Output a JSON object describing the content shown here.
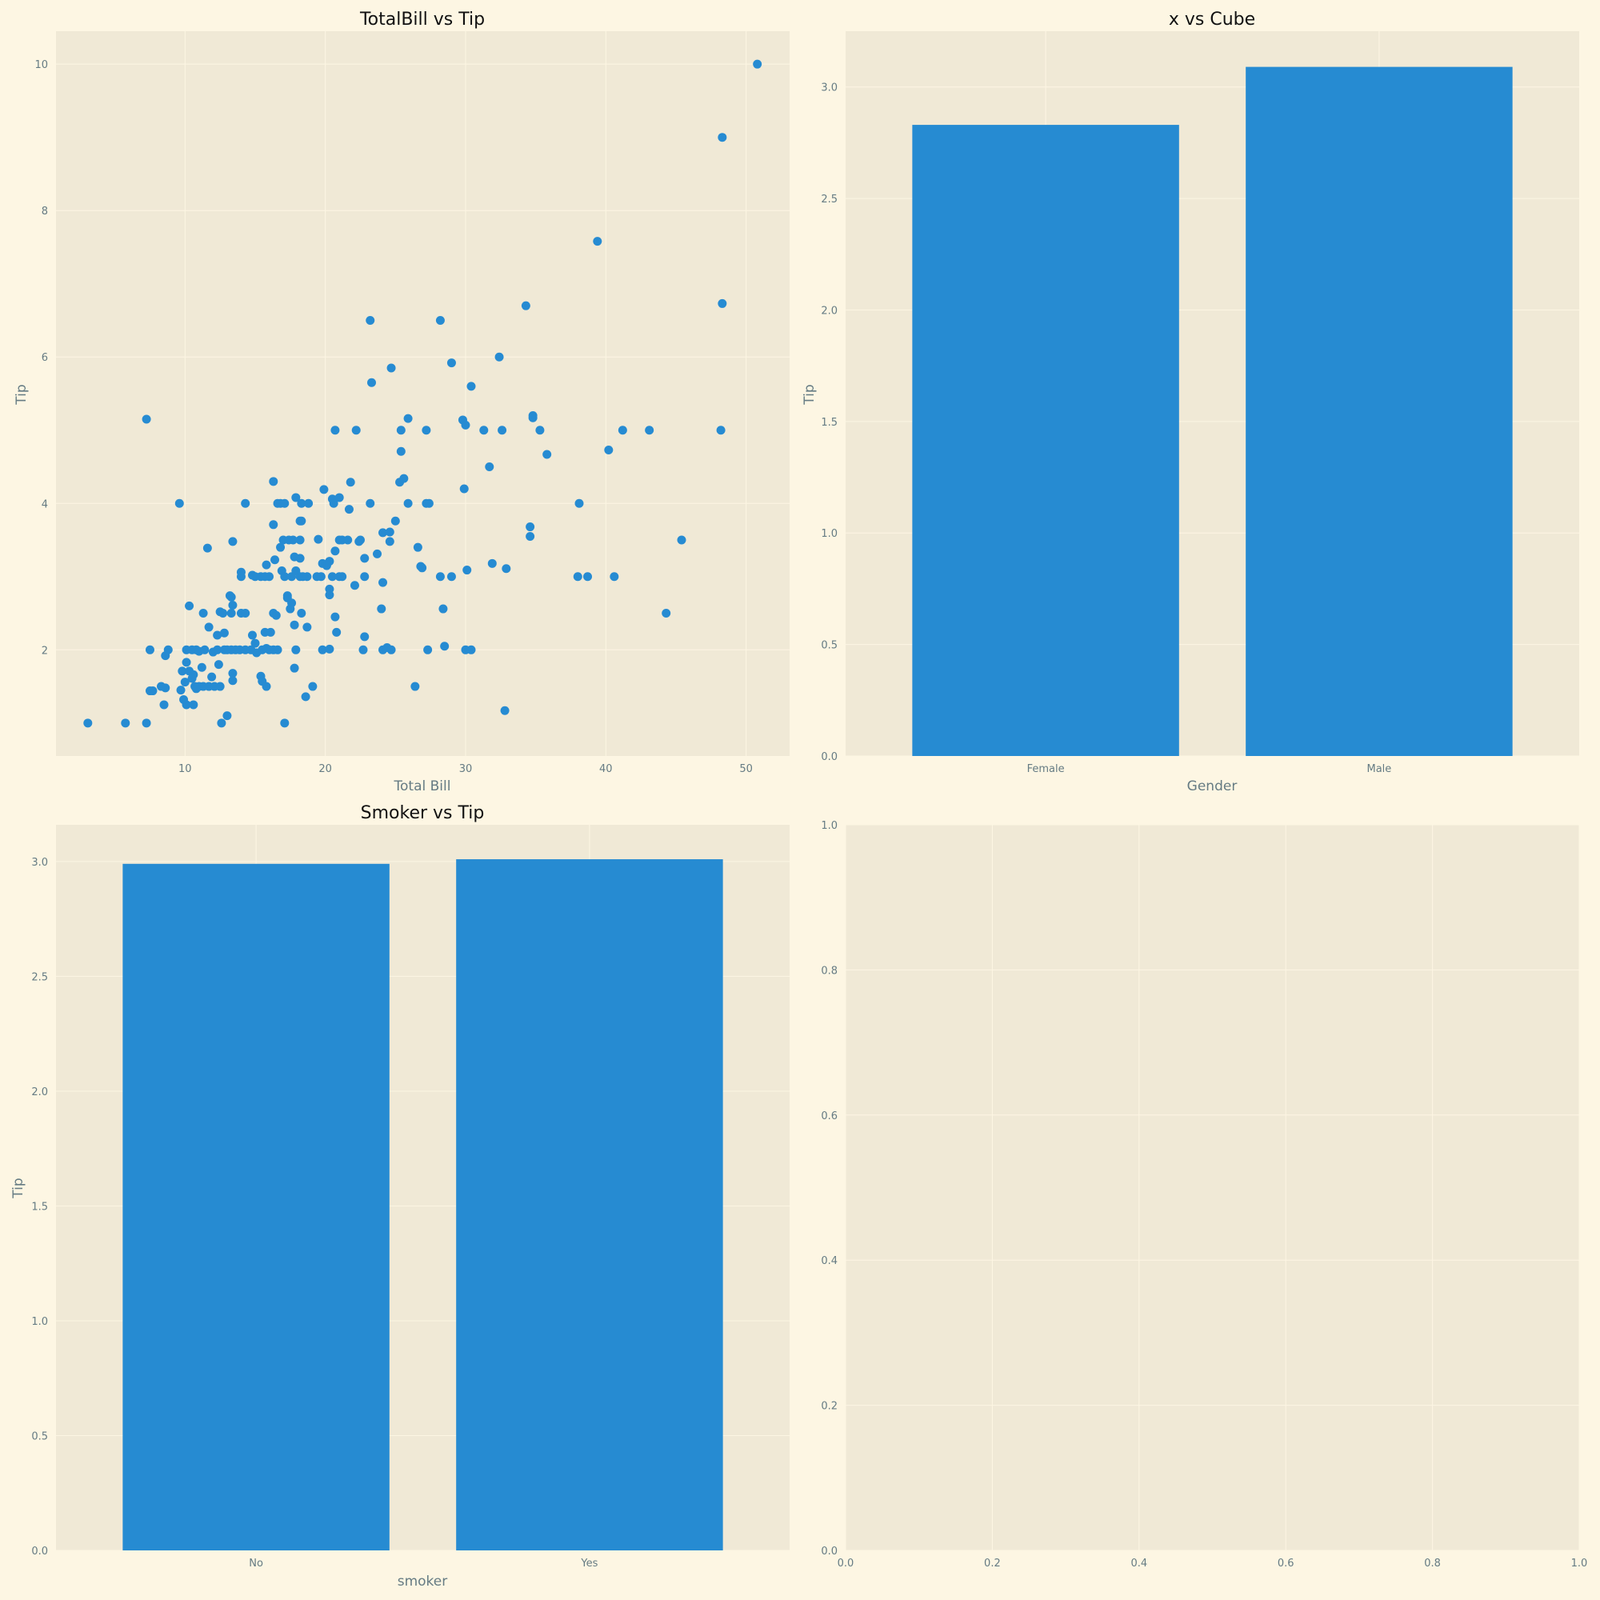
{
  "colors": {
    "figure_bg": "#fdf6e3",
    "axes_bg": "#f0e9d6",
    "grid": "#fdf6e3",
    "marks": "#268bd2",
    "text": "#657b83",
    "title": "#111111"
  },
  "chart_data": [
    {
      "type": "scatter",
      "title": "TotalBill vs Tip",
      "xlabel": "Total Bill",
      "ylabel": "Tip",
      "xlim": [
        0.8,
        53.1
      ],
      "ylim": [
        0.55,
        10.45
      ],
      "xticks": [
        10,
        20,
        30,
        40,
        50
      ],
      "yticks": [
        2,
        4,
        6,
        8,
        10
      ],
      "grid": true,
      "points": [
        [
          3.07,
          1.0
        ],
        [
          5.75,
          1.0
        ],
        [
          7.25,
          1.0
        ],
        [
          12.6,
          1.0
        ],
        [
          17.1,
          1.0
        ],
        [
          13.0,
          1.1
        ],
        [
          32.8,
          1.17
        ],
        [
          18.6,
          1.36
        ],
        [
          26.4,
          1.5
        ],
        [
          19.1,
          1.5
        ],
        [
          7.5,
          1.44
        ],
        [
          7.7,
          1.44
        ],
        [
          8.5,
          1.25
        ],
        [
          10.1,
          1.25
        ],
        [
          10.6,
          1.25
        ],
        [
          9.9,
          1.32
        ],
        [
          9.7,
          1.45
        ],
        [
          8.6,
          1.48
        ],
        [
          8.3,
          1.5
        ],
        [
          10.7,
          1.5
        ],
        [
          11.0,
          1.5
        ],
        [
          11.3,
          1.5
        ],
        [
          11.7,
          1.5
        ],
        [
          12.1,
          1.5
        ],
        [
          12.5,
          1.5
        ],
        [
          15.4,
          1.64
        ],
        [
          15.5,
          1.57
        ],
        [
          15.8,
          1.5
        ],
        [
          13.4,
          1.58
        ],
        [
          13.4,
          1.68
        ],
        [
          11.9,
          1.63
        ],
        [
          10.0,
          1.56
        ],
        [
          10.5,
          1.61
        ],
        [
          10.8,
          1.47
        ],
        [
          11.2,
          1.76
        ],
        [
          9.8,
          1.71
        ],
        [
          10.1,
          1.83
        ],
        [
          10.3,
          1.71
        ],
        [
          10.6,
          1.66
        ],
        [
          12.4,
          1.8
        ],
        [
          7.5,
          2.0
        ],
        [
          8.6,
          1.92
        ],
        [
          8.8,
          2.0
        ],
        [
          10.1,
          2.0
        ],
        [
          10.5,
          2.0
        ],
        [
          10.8,
          2.0
        ],
        [
          11.0,
          1.98
        ],
        [
          11.4,
          2.0
        ],
        [
          12.0,
          1.97
        ],
        [
          12.3,
          2.0
        ],
        [
          12.8,
          2.0
        ],
        [
          13.0,
          2.0
        ],
        [
          13.3,
          2.0
        ],
        [
          13.6,
          2.0
        ],
        [
          13.9,
          2.0
        ],
        [
          14.3,
          2.0
        ],
        [
          14.7,
          2.0
        ],
        [
          15.1,
          1.96
        ],
        [
          15.5,
          2.0
        ],
        [
          15.8,
          2.02
        ],
        [
          16.0,
          2.0
        ],
        [
          16.3,
          2.0
        ],
        [
          16.6,
          2.0
        ],
        [
          17.8,
          1.75
        ],
        [
          17.9,
          2.0
        ],
        [
          19.8,
          2.0
        ],
        [
          20.3,
          2.01
        ],
        [
          22.7,
          2.0
        ],
        [
          24.1,
          2.0
        ],
        [
          24.4,
          2.03
        ],
        [
          24.7,
          2.0
        ],
        [
          27.3,
          2.0
        ],
        [
          28.5,
          2.05
        ],
        [
          30.0,
          2.0
        ],
        [
          30.4,
          2.0
        ],
        [
          12.3,
          2.2
        ],
        [
          12.8,
          2.23
        ],
        [
          14.8,
          2.2
        ],
        [
          15.7,
          2.24
        ],
        [
          16.1,
          2.24
        ],
        [
          17.8,
          2.34
        ],
        [
          18.7,
          2.31
        ],
        [
          20.8,
          2.24
        ],
        [
          22.8,
          2.18
        ],
        [
          11.7,
          2.31
        ],
        [
          15.0,
          2.09
        ],
        [
          12.5,
          2.52
        ],
        [
          12.7,
          2.5
        ],
        [
          11.3,
          2.5
        ],
        [
          13.3,
          2.5
        ],
        [
          14.0,
          2.5
        ],
        [
          14.3,
          2.5
        ],
        [
          16.3,
          2.5
        ],
        [
          16.5,
          2.47
        ],
        [
          18.3,
          2.5
        ],
        [
          20.7,
          2.45
        ],
        [
          24.0,
          2.56
        ],
        [
          28.4,
          2.56
        ],
        [
          44.3,
          2.5
        ],
        [
          10.3,
          2.6
        ],
        [
          13.2,
          2.74
        ],
        [
          13.4,
          2.61
        ],
        [
          13.3,
          2.72
        ],
        [
          17.3,
          2.71
        ],
        [
          17.3,
          2.74
        ],
        [
          17.5,
          2.56
        ],
        [
          17.6,
          2.64
        ],
        [
          20.3,
          2.83
        ],
        [
          20.3,
          2.75
        ],
        [
          22.1,
          2.88
        ],
        [
          24.1,
          2.92
        ],
        [
          14.0,
          3.0
        ],
        [
          14.0,
          3.06
        ],
        [
          14.8,
          3.02
        ],
        [
          15.0,
          3.0
        ],
        [
          15.4,
          3.0
        ],
        [
          15.7,
          3.0
        ],
        [
          16.0,
          3.0
        ],
        [
          16.9,
          3.08
        ],
        [
          17.1,
          3.0
        ],
        [
          17.6,
          3.0
        ],
        [
          17.9,
          3.08
        ],
        [
          18.2,
          3.0
        ],
        [
          18.4,
          3.0
        ],
        [
          18.7,
          3.0
        ],
        [
          19.4,
          3.0
        ],
        [
          19.7,
          3.0
        ],
        [
          20.5,
          3.0
        ],
        [
          21.0,
          3.0
        ],
        [
          21.2,
          3.0
        ],
        [
          22.8,
          3.0
        ],
        [
          28.2,
          3.0
        ],
        [
          29.0,
          3.0
        ],
        [
          30.1,
          3.09
        ],
        [
          38.0,
          3.0
        ],
        [
          38.7,
          3.0
        ],
        [
          40.6,
          3.0
        ],
        [
          15.8,
          3.16
        ],
        [
          18.2,
          3.25
        ],
        [
          19.8,
          3.18
        ],
        [
          20.3,
          3.21
        ],
        [
          20.1,
          3.15
        ],
        [
          22.8,
          3.25
        ],
        [
          23.7,
          3.31
        ],
        [
          26.9,
          3.12
        ],
        [
          26.8,
          3.14
        ],
        [
          31.9,
          3.18
        ],
        [
          32.9,
          3.11
        ],
        [
          16.4,
          3.23
        ],
        [
          17.8,
          3.27
        ],
        [
          13.4,
          3.48
        ],
        [
          11.6,
          3.39
        ],
        [
          16.8,
          3.4
        ],
        [
          17.0,
          3.5
        ],
        [
          17.4,
          3.5
        ],
        [
          17.7,
          3.5
        ],
        [
          18.2,
          3.5
        ],
        [
          19.5,
          3.51
        ],
        [
          20.7,
          3.35
        ],
        [
          21.0,
          3.5
        ],
        [
          21.2,
          3.5
        ],
        [
          21.6,
          3.5
        ],
        [
          22.4,
          3.48
        ],
        [
          22.5,
          3.5
        ],
        [
          24.6,
          3.48
        ],
        [
          26.6,
          3.4
        ],
        [
          34.6,
          3.55
        ],
        [
          45.4,
          3.5
        ],
        [
          16.3,
          3.71
        ],
        [
          18.3,
          3.76
        ],
        [
          18.2,
          3.76
        ],
        [
          24.1,
          3.6
        ],
        [
          24.6,
          3.61
        ],
        [
          25.0,
          3.76
        ],
        [
          34.6,
          3.68
        ],
        [
          9.6,
          4.0
        ],
        [
          14.3,
          4.0
        ],
        [
          16.6,
          4.0
        ],
        [
          16.8,
          4.0
        ],
        [
          17.1,
          4.0
        ],
        [
          18.3,
          4.0
        ],
        [
          18.8,
          4.0
        ],
        [
          20.5,
          4.06
        ],
        [
          20.6,
          4.0
        ],
        [
          21.0,
          4.08
        ],
        [
          23.2,
          4.0
        ],
        [
          25.9,
          4.0
        ],
        [
          27.2,
          4.0
        ],
        [
          27.4,
          4.0
        ],
        [
          38.1,
          4.0
        ],
        [
          17.9,
          4.08
        ],
        [
          21.7,
          3.92
        ],
        [
          16.3,
          4.3
        ],
        [
          19.9,
          4.19
        ],
        [
          21.8,
          4.29
        ],
        [
          25.3,
          4.29
        ],
        [
          25.6,
          4.34
        ],
        [
          29.9,
          4.2
        ],
        [
          31.7,
          4.5
        ],
        [
          25.4,
          4.71
        ],
        [
          35.8,
          4.67
        ],
        [
          40.2,
          4.73
        ],
        [
          7.25,
          5.15
        ],
        [
          20.7,
          5.0
        ],
        [
          22.2,
          5.0
        ],
        [
          25.4,
          5.0
        ],
        [
          27.2,
          5.0
        ],
        [
          29.8,
          5.14
        ],
        [
          30.0,
          5.07
        ],
        [
          31.3,
          5.0
        ],
        [
          32.6,
          5.0
        ],
        [
          34.8,
          5.2
        ],
        [
          34.8,
          5.17
        ],
        [
          35.3,
          5.0
        ],
        [
          41.2,
          5.0
        ],
        [
          43.1,
          5.0
        ],
        [
          48.2,
          5.0
        ],
        [
          25.9,
          5.16
        ],
        [
          23.3,
          5.65
        ],
        [
          24.7,
          5.85
        ],
        [
          30.4,
          5.6
        ],
        [
          29.0,
          5.92
        ],
        [
          32.4,
          6.0
        ],
        [
          23.2,
          6.5
        ],
        [
          28.2,
          6.5
        ],
        [
          34.3,
          6.7
        ],
        [
          48.3,
          6.73
        ],
        [
          39.4,
          7.58
        ],
        [
          48.3,
          9.0
        ],
        [
          50.8,
          10.0
        ]
      ]
    },
    {
      "type": "bar",
      "title": "x vs Cube",
      "xlabel": "Gender",
      "ylabel": "Tip",
      "categories": [
        "Female",
        "Male"
      ],
      "values": [
        2.83,
        3.09
      ],
      "ylim": [
        0,
        3.25
      ],
      "yticks": [
        0.0,
        0.5,
        1.0,
        1.5,
        2.0,
        2.5,
        3.0
      ],
      "grid": true
    },
    {
      "type": "bar",
      "title": "Smoker vs Tip",
      "xlabel": "smoker",
      "ylabel": "Tip",
      "categories": [
        "No",
        "Yes"
      ],
      "values": [
        2.99,
        3.01
      ],
      "ylim": [
        0,
        3.16
      ],
      "yticks": [
        0.0,
        0.5,
        1.0,
        1.5,
        2.0,
        2.5,
        3.0
      ],
      "grid": true
    },
    {
      "type": "empty",
      "title": "",
      "xlabel": "",
      "ylabel": "",
      "xlim": [
        0,
        1
      ],
      "ylim": [
        0,
        1
      ],
      "xticks": [
        0.0,
        0.2,
        0.4,
        0.6,
        0.8,
        1.0
      ],
      "yticks": [
        0.0,
        0.2,
        0.4,
        0.6,
        0.8,
        1.0
      ],
      "grid": true
    }
  ]
}
